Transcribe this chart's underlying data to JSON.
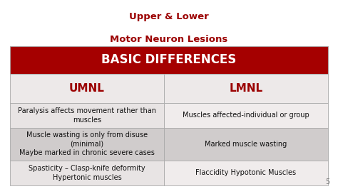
{
  "title_line1": "Upper & Lower",
  "title_line2": "Motor Neuron Lesions",
  "title_color": "#9b0000",
  "header_text": "BASIC DIFFERENCES",
  "header_bg": "#a50000",
  "header_text_color": "#ffffff",
  "col1_header": "UMNL",
  "col2_header": "LMNL",
  "col_header_color": "#9b0000",
  "col_header_bg": "#ede9e9",
  "border_color": "#aaaaaa",
  "page_bg": "#ffffff",
  "rows": [
    {
      "col1": "Paralysis affects movement rather than\nmuscles",
      "col2": "Muscles affected-individual or group",
      "col1_bg": "#e8e4e4",
      "col2_bg": "#f0ecec"
    },
    {
      "col1": "Muscle wasting is only from disuse\n(minimal)\nMaybe marked in chronic severe cases",
      "col2": "Marked muscle wasting",
      "col1_bg": "#d0cccc",
      "col2_bg": "#d0cccc"
    },
    {
      "col1": "Spasticity – Clasp-knife deformity\nHypertonic muscles",
      "col2": "Flaccidity Hypotonic Muscles",
      "col1_bg": "#e8e4e4",
      "col2_bg": "#f0ecec"
    }
  ],
  "page_number": "5",
  "font_size_title": 9.5,
  "font_size_header": 12,
  "font_size_col_header": 11,
  "font_size_cell": 7,
  "font_size_page": 7
}
